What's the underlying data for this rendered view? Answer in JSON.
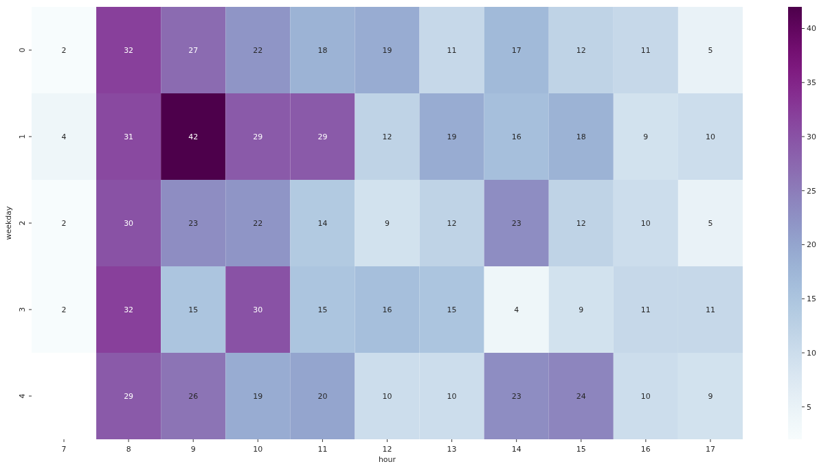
{
  "chart_data": {
    "type": "heatmap",
    "xlabel": "hour",
    "ylabel": "weekday",
    "categories": [
      "7",
      "8",
      "9",
      "10",
      "11",
      "12",
      "13",
      "14",
      "15",
      "16",
      "17"
    ],
    "y_categories": [
      "0",
      "1",
      "2",
      "3",
      "4"
    ],
    "cells": [
      [
        2,
        32,
        27,
        22,
        18,
        19,
        11,
        17,
        12,
        11,
        5
      ],
      [
        4,
        31,
        42,
        29,
        29,
        12,
        19,
        16,
        18,
        9,
        10
      ],
      [
        2,
        30,
        23,
        22,
        14,
        9,
        12,
        23,
        12,
        10,
        5
      ],
      [
        2,
        32,
        15,
        30,
        15,
        16,
        15,
        4,
        9,
        11,
        11
      ],
      [
        null,
        29,
        26,
        19,
        20,
        10,
        10,
        23,
        24,
        10,
        9
      ]
    ],
    "data_labels": true,
    "clim": [
      2,
      42
    ],
    "cticks": [
      5,
      10,
      15,
      20,
      25,
      30,
      35,
      40
    ]
  }
}
